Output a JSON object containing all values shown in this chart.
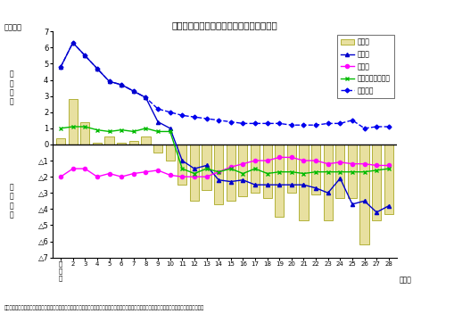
{
  "title": "日本人の主な移動理由別転入転出差の推移",
  "xlabel_unit": "（千人）",
  "year_unit": "〔年〕",
  "footnote": "注）　合計には，「生活環境の都市化」，「自治体変上」，「気候の都市化」，「その他」及び「不詳（日本人移住の配置・帰依）」によるものを含む。",
  "ylim": [
    -7,
    7
  ],
  "bar_color": "#e8e0a0",
  "bar_edgecolor": "#999900",
  "bar_values": [
    0.4,
    2.8,
    1.4,
    0.1,
    0.5,
    0.1,
    0.2,
    0.5,
    -0.5,
    -1.0,
    -2.5,
    -3.5,
    -2.8,
    -3.7,
    -3.5,
    -3.2,
    -3.0,
    -3.3,
    -4.5,
    -3.0,
    -4.7,
    -3.1,
    -4.7,
    -3.3,
    -3.3,
    -6.2,
    -4.7,
    -4.3
  ],
  "shokugyou": [
    4.8,
    6.3,
    5.5,
    4.7,
    3.9,
    3.7,
    3.3,
    2.9,
    1.4,
    1.0,
    -1.0,
    -1.5,
    -1.3,
    -2.2,
    -2.3,
    -2.2,
    -2.5,
    -2.5,
    -2.5,
    -2.5,
    -2.5,
    -2.7,
    -3.0,
    -2.1,
    -3.7,
    -3.5,
    -4.2,
    -3.8
  ],
  "shokugyou_color": "#0000cc",
  "gakugyou": [
    -2.0,
    -1.5,
    -1.5,
    -2.0,
    -1.8,
    -2.0,
    -1.8,
    -1.7,
    -1.6,
    -1.9,
    -2.0,
    -2.0,
    -2.0,
    -1.7,
    -1.4,
    -1.2,
    -1.0,
    -1.0,
    -0.8,
    -0.8,
    -1.0,
    -1.0,
    -1.2,
    -1.1,
    -1.2,
    -1.2,
    -1.3,
    -1.3
  ],
  "gakugyou_color": "#ff00ff",
  "kekkon": [
    1.0,
    1.1,
    1.1,
    0.9,
    0.8,
    0.9,
    0.8,
    1.0,
    0.8,
    0.8,
    -1.5,
    -1.8,
    -1.5,
    -1.7,
    -1.5,
    -1.8,
    -1.5,
    -1.8,
    -1.7,
    -1.7,
    -1.8,
    -1.7,
    -1.7,
    -1.7,
    -1.7,
    -1.7,
    -1.6,
    -1.5
  ],
  "kekkon_color": "#00bb00",
  "juutaku": [
    4.8,
    6.3,
    5.5,
    4.7,
    3.9,
    3.7,
    3.3,
    2.9,
    2.2,
    2.0,
    1.8,
    1.7,
    1.6,
    1.5,
    1.4,
    1.3,
    1.3,
    1.3,
    1.3,
    1.2,
    1.2,
    1.2,
    1.3,
    1.3,
    1.5,
    1.0,
    1.1,
    1.1
  ],
  "juutaku_color": "#0000ee",
  "legend_labels": [
    "合　計",
    "職業上",
    "学業上",
    "結婚・離婚・縁組",
    "住宅事情"
  ]
}
